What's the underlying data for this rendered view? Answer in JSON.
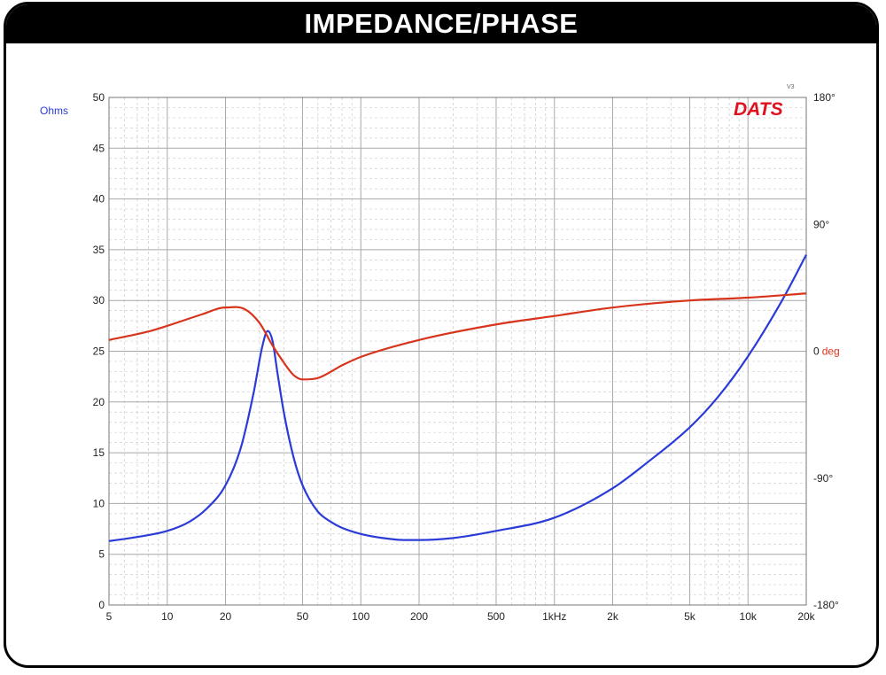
{
  "title": "IMPEDANCE/PHASE",
  "colors": {
    "impedance": "#2a3bd8",
    "phase": "#d8341c",
    "ohms_label": "#2a3bd8",
    "deg_label": "#d8341c",
    "brand": "#e0101e",
    "grid_major": "#a8a8a8",
    "grid_minor": "#cfcfcf"
  },
  "chart_data": {
    "type": "line",
    "title": "IMPEDANCE/PHASE",
    "brand": "DATS",
    "brand_version": "V3",
    "x_scale": "log",
    "xlim": [
      5,
      20000
    ],
    "x_ticks": [
      {
        "value": 5,
        "label": "5"
      },
      {
        "value": 10,
        "label": "10"
      },
      {
        "value": 20,
        "label": "20"
      },
      {
        "value": 50,
        "label": "50"
      },
      {
        "value": 100,
        "label": "100"
      },
      {
        "value": 200,
        "label": "200"
      },
      {
        "value": 500,
        "label": "500"
      },
      {
        "value": 1000,
        "label": "1kHz"
      },
      {
        "value": 2000,
        "label": "2k"
      },
      {
        "value": 5000,
        "label": "5k"
      },
      {
        "value": 10000,
        "label": "10k"
      },
      {
        "value": 20000,
        "label": "20k"
      }
    ],
    "y_left": {
      "label": "Ohms",
      "ylim": [
        0,
        50
      ],
      "ticks": [
        "0",
        "5",
        "10",
        "15",
        "20",
        "25",
        "30",
        "35",
        "40",
        "45",
        "50"
      ]
    },
    "y_right": {
      "ylim": [
        -180,
        180
      ],
      "ticks": [
        {
          "value": 180,
          "label": "180°"
        },
        {
          "value": 90,
          "label": "90°"
        },
        {
          "value": 0,
          "label": "0",
          "unit": "deg"
        },
        {
          "value": -90,
          "label": "-90°"
        },
        {
          "value": -180,
          "label": "-180°"
        }
      ]
    },
    "grid": true,
    "series": [
      {
        "name": "Impedance",
        "axis": "left",
        "x": [
          5,
          7,
          10,
          13,
          16,
          20,
          24,
          28,
          31,
          33,
          35,
          37,
          40,
          45,
          50,
          60,
          70,
          80,
          100,
          130,
          170,
          200,
          300,
          500,
          1000,
          2000,
          3000,
          5000,
          7000,
          10000,
          15000,
          20000
        ],
        "y": [
          6.3,
          6.7,
          7.3,
          8.2,
          9.5,
          11.8,
          15.5,
          21.0,
          25.5,
          27.0,
          26.0,
          23.0,
          19.0,
          14.5,
          11.8,
          9.2,
          8.2,
          7.6,
          7.0,
          6.6,
          6.4,
          6.4,
          6.6,
          7.3,
          8.6,
          11.5,
          14.0,
          17.5,
          20.5,
          24.5,
          30.0,
          34.5
        ]
      },
      {
        "name": "Phase",
        "axis": "right",
        "x": [
          5,
          8,
          10,
          15,
          20,
          25,
          30,
          35,
          40,
          45,
          50,
          60,
          80,
          100,
          200,
          500,
          1000,
          2000,
          5000,
          10000,
          20000
        ],
        "y": [
          8,
          14,
          18,
          26,
          31,
          30,
          20,
          4,
          -8,
          -17,
          -20,
          -19,
          -10,
          -4,
          8,
          19,
          25,
          31,
          36,
          38,
          41
        ]
      }
    ]
  }
}
